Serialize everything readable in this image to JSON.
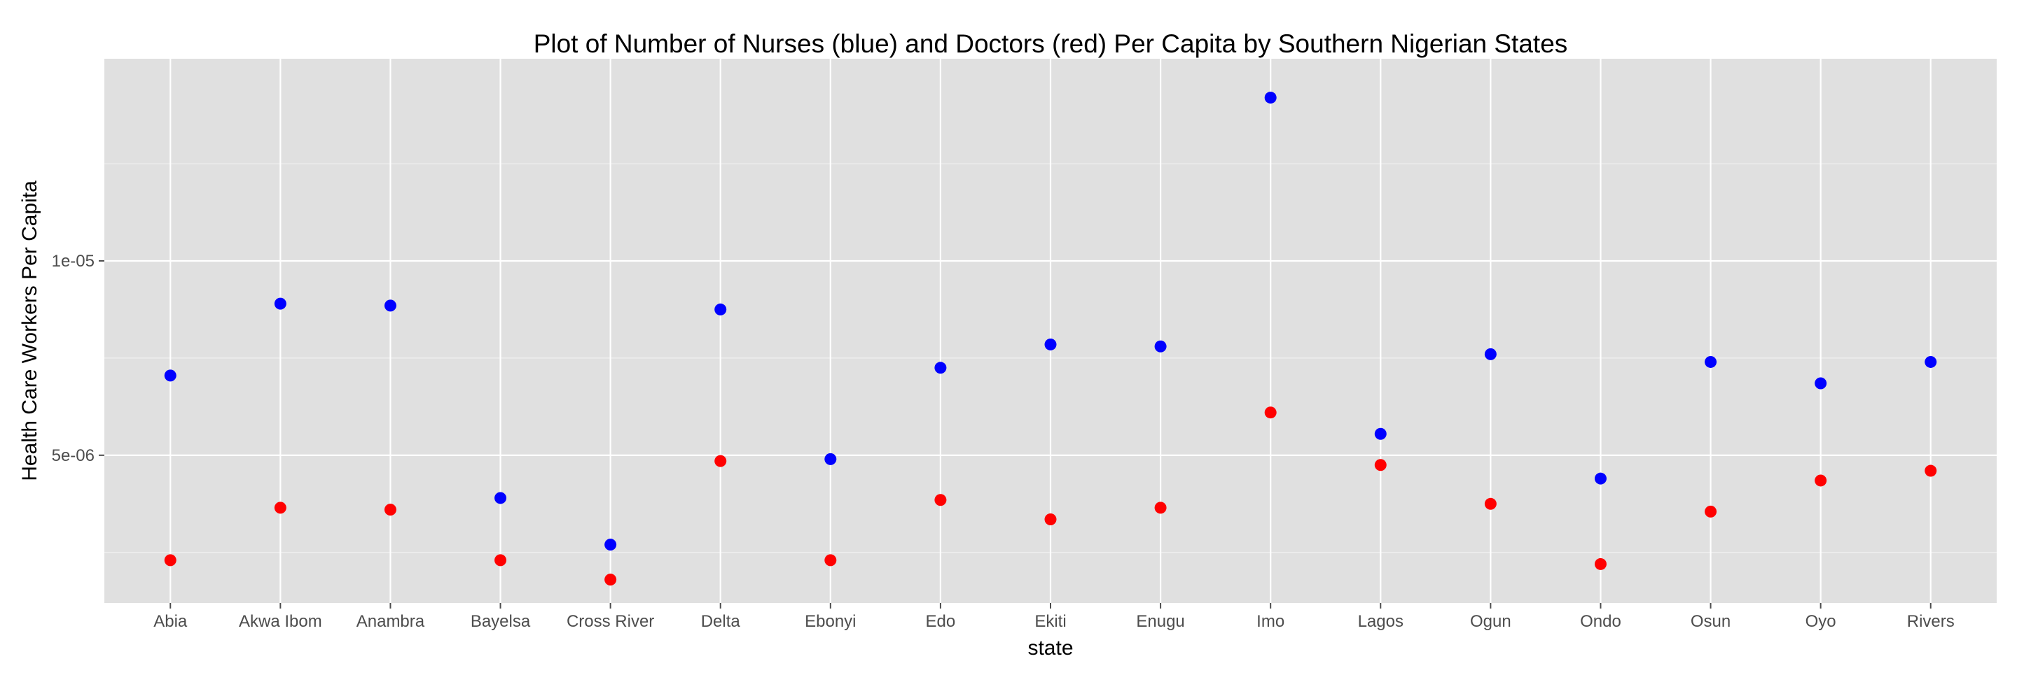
{
  "chart_data": {
    "type": "scatter",
    "title": "Plot of Number of Nurses (blue) and Doctors (red) Per Capita by Southern Nigerian States",
    "xlabel": "state",
    "ylabel": "Health Care Workers Per Capita",
    "categories": [
      "Abia",
      "Akwa Ibom",
      "Anambra",
      "Bayelsa",
      "Cross River",
      "Delta",
      "Ebonyi",
      "Edo",
      "Ekiti",
      "Enugu",
      "Imo",
      "Lagos",
      "Ogun",
      "Ondo",
      "Osun",
      "Oyo",
      "Rivers"
    ],
    "y_ticks": [
      {
        "value": 5e-06,
        "label": "5e-06"
      },
      {
        "value": 1e-05,
        "label": "1e-05"
      }
    ],
    "ylim": [
      1.2e-06,
      1.52e-05
    ],
    "grid": true,
    "legend": "none",
    "series": [
      {
        "color": "#0000ff",
        "values": [
          7.05e-06,
          8.9e-06,
          8.85e-06,
          3.9e-06,
          2.7e-06,
          8.75e-06,
          4.9e-06,
          7.25e-06,
          7.85e-06,
          7.8e-06,
          1.42e-05,
          5.55e-06,
          7.6e-06,
          4.4e-06,
          7.4e-06,
          6.85e-06,
          7.4e-06
        ]
      },
      {
        "color": "#ff0000",
        "values": [
          2.3e-06,
          3.65e-06,
          3.6e-06,
          2.3e-06,
          1.8e-06,
          4.85e-06,
          2.3e-06,
          3.85e-06,
          3.35e-06,
          3.65e-06,
          6.1e-06,
          4.75e-06,
          3.75e-06,
          2.2e-06,
          3.55e-06,
          4.35e-06,
          4.6e-06
        ]
      }
    ],
    "colors": {
      "panel_background": "#e0e0e0",
      "grid_major": "#ffffff",
      "grid_minor": "#f0f0f0"
    }
  }
}
